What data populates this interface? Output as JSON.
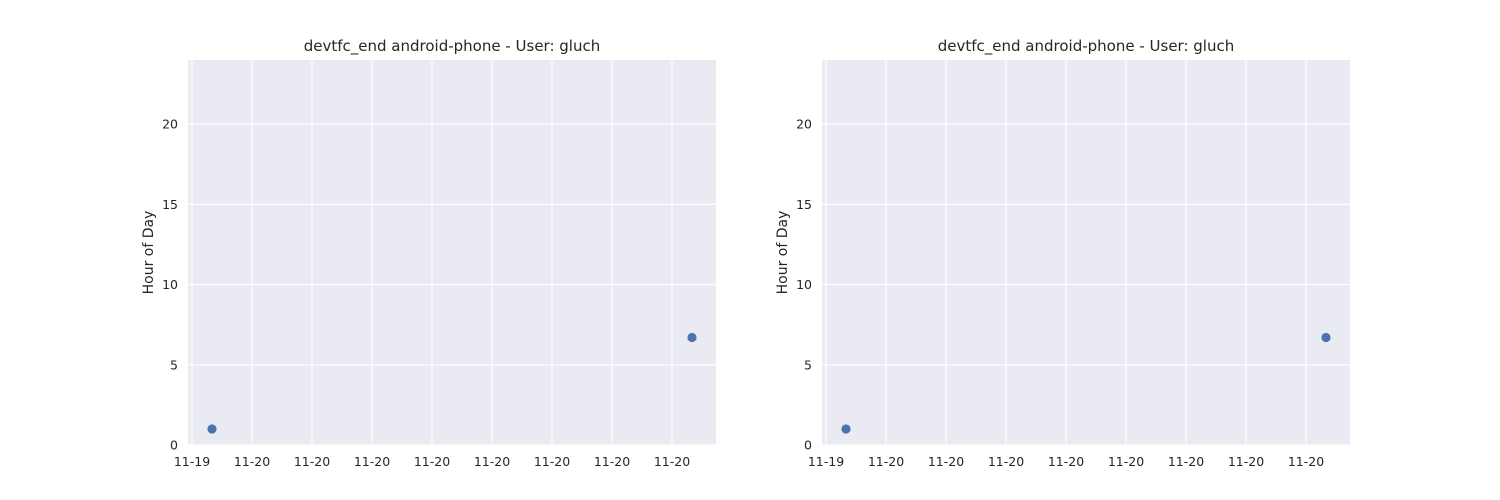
{
  "chart_data": [
    {
      "type": "scatter",
      "title": "devtfc_end android-phone - User: gluch",
      "xlabel": "",
      "ylabel": "Hour of Day",
      "ylim": [
        0,
        24
      ],
      "yticks": [
        0,
        5,
        10,
        15,
        20
      ],
      "xtick_labels": [
        "11-19",
        "11-20",
        "11-20",
        "11-20",
        "11-20",
        "11-20",
        "11-20",
        "11-20",
        "11-20"
      ],
      "grid": true,
      "marker_color": "#4c72b0",
      "series": [
        {
          "x": [
            "2018-11-19T21:00",
            "2018-11-20T05:00"
          ],
          "y": [
            1.0,
            6.7
          ]
        }
      ]
    },
    {
      "type": "scatter",
      "title": "devtfc_end android-phone - User: gluch",
      "xlabel": "",
      "ylabel": "Hour of Day",
      "ylim": [
        0,
        24
      ],
      "yticks": [
        0,
        5,
        10,
        15,
        20
      ],
      "xtick_labels": [
        "11-19",
        "11-20",
        "11-20",
        "11-20",
        "11-20",
        "11-20",
        "11-20",
        "11-20",
        "11-20"
      ],
      "grid": true,
      "marker_color": "#4c72b0",
      "series": [
        {
          "x": [
            "2018-11-19T21:00",
            "2018-11-20T05:00"
          ],
          "y": [
            1.0,
            6.7
          ]
        }
      ]
    }
  ]
}
